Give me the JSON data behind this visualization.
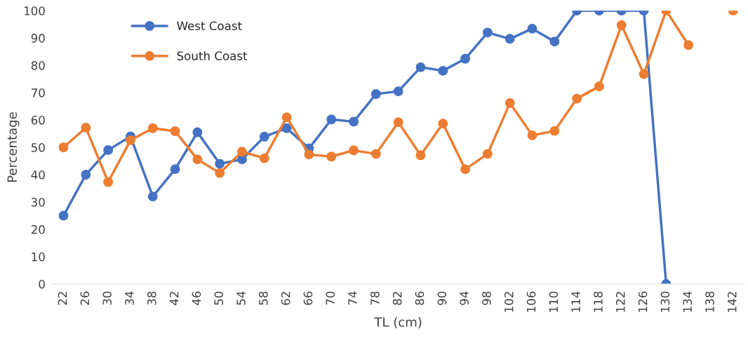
{
  "chart_data": {
    "type": "line",
    "xlabel": "TL (cm)",
    "ylabel": "Percentage",
    "categories": [
      "22",
      "26",
      "30",
      "34",
      "38",
      "42",
      "46",
      "50",
      "54",
      "58",
      "62",
      "66",
      "70",
      "74",
      "78",
      "82",
      "86",
      "90",
      "94",
      "98",
      "102",
      "106",
      "110",
      "114",
      "118",
      "122",
      "126",
      "130",
      "134",
      "138",
      "142"
    ],
    "series": [
      {
        "name": "West Coast",
        "color": "#4472c4",
        "values": [
          25,
          40,
          49,
          54,
          32,
          42,
          55.5,
          44,
          45.6,
          53.9,
          57,
          49.6,
          60.2,
          59.4,
          69.5,
          70.5,
          79.3,
          78,
          82.4,
          92,
          89.7,
          93.4,
          88.7,
          100,
          100,
          100,
          100,
          0,
          null,
          null,
          null
        ]
      },
      {
        "name": "South Coast",
        "color": "#ed7d31",
        "values": [
          50,
          57.2,
          37.3,
          52.6,
          57,
          55.9,
          45.6,
          40.6,
          48.4,
          46,
          61,
          47.4,
          46.6,
          48.9,
          47.6,
          59.2,
          47.1,
          58.7,
          42,
          47.6,
          66.2,
          54.4,
          56,
          67.8,
          72.3,
          94.7,
          76.8,
          100,
          87.4,
          null,
          100
        ]
      }
    ],
    "ylim": [
      0,
      100
    ],
    "yticks": [
      0,
      10,
      20,
      30,
      40,
      50,
      60,
      70,
      80,
      90,
      100
    ],
    "grid": false,
    "legend": "top left",
    "marker": "circle",
    "line_style": "solid"
  }
}
